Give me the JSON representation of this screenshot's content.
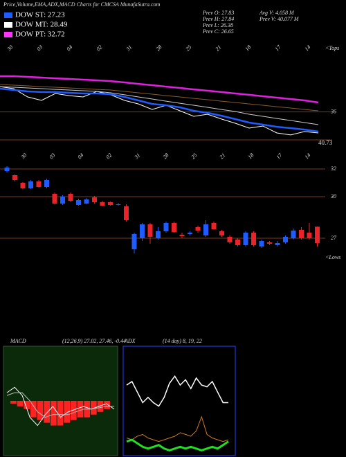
{
  "header": {
    "title": "Price,Volume,EMA,ADX,MACD Charts for CMCSA MunafaSutra.com",
    "legend": [
      {
        "label": "DOW ST: 27.23",
        "color": "#1e5cff"
      },
      {
        "label": "DOW MT: 28.49",
        "color": "#ffffff"
      },
      {
        "label": "DOW PT: 32.72",
        "color": "#ff33ff"
      }
    ],
    "prev_left": [
      "Prev O: 27.83",
      "Prev H: 27.84",
      "Prev L: 26.38",
      "Prev C: 26.65"
    ],
    "prev_right": [
      "Avg V: 4.058 M",
      "Prev V: 40.077 M"
    ]
  },
  "chart_data": [
    {
      "type": "line",
      "ylim": [
        32.5,
        43
      ],
      "yticks": [
        36
      ],
      "annotation": "40.73",
      "corner_label": "<Tops",
      "date_labels": [
        "30",
        "03",
        "04",
        "02",
        "31",
        "28",
        "25",
        "21",
        "18",
        "17",
        "14"
      ],
      "series": [
        {
          "name": "Price",
          "color": "#ffffff",
          "width": 1,
          "values": [
            38.65,
            38.43,
            37.57,
            37.21,
            37.93,
            37.71,
            37.57,
            38.15,
            37.79,
            37.21,
            36.84,
            36.26,
            36.7,
            36.12,
            35.54,
            35.76,
            35.26,
            34.82,
            34.31,
            34.53,
            33.8,
            33.59,
            33.95,
            33.8
          ]
        },
        {
          "name": "DOW ST",
          "color": "#1e5cff",
          "width": 2.5,
          "values": [
            38.44,
            38.29,
            38.15,
            38.08,
            38.08,
            38.0,
            37.93,
            37.93,
            37.86,
            37.57,
            37.21,
            36.84,
            36.7,
            36.48,
            36.12,
            35.9,
            35.61,
            35.25,
            34.89,
            34.67,
            34.45,
            34.31,
            34.16,
            33.95
          ]
        },
        {
          "name": "DOW MT",
          "color": "#cccccc",
          "width": 1,
          "values": [
            38.65,
            38.58,
            38.51,
            38.44,
            38.36,
            38.29,
            38.22,
            38.15,
            38.0,
            37.79,
            37.57,
            37.35,
            37.13,
            36.91,
            36.7,
            36.48,
            36.26,
            36.05,
            35.76,
            35.54,
            35.32,
            35.11,
            34.89,
            34.67
          ]
        },
        {
          "name": "EMA long",
          "color": "#8a5a2a",
          "width": 1,
          "values": [
            38.87,
            38.8,
            38.73,
            38.65,
            38.58,
            38.51,
            38.44,
            38.36,
            38.29,
            38.15,
            38.0,
            37.86,
            37.71,
            37.57,
            37.42,
            37.28,
            37.13,
            36.99,
            36.84,
            36.7,
            36.55,
            36.41,
            36.26,
            36.12
          ]
        },
        {
          "name": "DOW PT",
          "color": "#e020e0",
          "width": 2.5,
          "values": [
            39.74,
            39.74,
            39.67,
            39.6,
            39.52,
            39.45,
            39.38,
            39.31,
            39.23,
            39.09,
            38.94,
            38.8,
            38.65,
            38.51,
            38.36,
            38.22,
            38.08,
            37.93,
            37.79,
            37.64,
            37.5,
            37.35,
            37.21,
            36.99
          ]
        }
      ]
    },
    {
      "type": "candlestick",
      "ylim": [
        25.45,
        32.8
      ],
      "yticks": [
        27,
        30,
        32
      ],
      "corner_label": "<Lows",
      "up_color": "#1e5cff",
      "down_color": "#e8232a",
      "open": [
        31.85,
        31.55,
        31.0,
        30.6,
        31.1,
        30.7,
        30.2,
        29.5,
        30.2,
        29.4,
        29.5,
        29.95,
        29.6,
        29.6,
        29.4,
        29.3,
        26.2,
        27.0,
        28.0,
        27.0,
        27.5,
        28.1,
        27.25,
        27.3,
        27.8,
        27.2,
        28.1,
        27.5,
        27.1,
        26.9,
        26.5,
        27.4,
        26.4,
        26.7,
        26.5,
        26.7,
        27.0,
        27.6,
        27.4,
        27.83
      ],
      "high": [
        32.2,
        31.6,
        31.05,
        31.2,
        31.2,
        31.3,
        30.3,
        30.1,
        30.3,
        29.85,
        29.9,
        30.05,
        29.7,
        29.65,
        29.55,
        29.45,
        27.4,
        28.1,
        28.1,
        27.8,
        28.2,
        28.2,
        27.4,
        27.5,
        27.9,
        28.3,
        28.2,
        27.6,
        27.2,
        27.0,
        27.5,
        27.5,
        26.9,
        26.8,
        26.8,
        27.2,
        27.7,
        27.8,
        28.1,
        27.84
      ],
      "low": [
        31.75,
        31.1,
        30.55,
        30.55,
        30.65,
        30.6,
        29.45,
        29.4,
        29.6,
        29.35,
        29.45,
        29.5,
        29.3,
        29.35,
        29.35,
        28.2,
        25.9,
        26.8,
        26.6,
        26.9,
        27.4,
        27.4,
        27.0,
        27.2,
        27.4,
        27.1,
        27.6,
        27.1,
        26.6,
        26.4,
        26.4,
        26.4,
        26.3,
        26.5,
        26.4,
        26.6,
        26.9,
        26.9,
        26.9,
        26.38
      ],
      "close": [
        32.1,
        31.2,
        30.6,
        31.1,
        30.7,
        31.2,
        29.5,
        30.0,
        29.7,
        29.75,
        29.8,
        29.6,
        29.35,
        29.4,
        29.45,
        28.3,
        27.3,
        28.0,
        27.1,
        27.5,
        28.1,
        27.45,
        27.15,
        27.4,
        27.55,
        28.0,
        27.65,
        27.2,
        26.7,
        26.5,
        27.4,
        26.5,
        26.8,
        26.6,
        26.65,
        27.1,
        27.55,
        27.0,
        27.0,
        26.65
      ]
    },
    {
      "type": "macd",
      "title": "MACD",
      "params": "(12,26,9) 27.02, 27.46, -0.44",
      "ylim": [
        -2,
        2
      ],
      "background": "#0a2a0a",
      "hist_color": "#ff2222",
      "series": [
        {
          "name": "MACD",
          "color": "#ffffff",
          "values": [
            0.3,
            0.5,
            0.2,
            -0.6,
            -0.9,
            -0.5,
            -0.2,
            -0.6,
            -0.4,
            -0.3,
            -0.2,
            -0.3,
            -0.2,
            -0.1,
            -0.3
          ]
        },
        {
          "name": "Signal",
          "color": "#bbbbbb",
          "values": [
            0.2,
            0.3,
            0.3,
            0.0,
            -0.4,
            -0.6,
            -0.5,
            -0.5,
            -0.5,
            -0.4,
            -0.3,
            -0.3,
            -0.25,
            -0.2,
            -0.2
          ]
        }
      ],
      "histogram": [
        -0.1,
        -0.2,
        -0.3,
        -0.6,
        -0.7,
        -0.8,
        -0.9,
        -0.9,
        -0.8,
        -0.7,
        -0.6,
        -0.6,
        -0.5,
        -0.4,
        -0.3
      ]
    },
    {
      "type": "adx",
      "title": "ADX",
      "params": "(14 day) 8, 19, 22",
      "ylim": [
        0,
        62
      ],
      "border": "#2244ff",
      "series": [
        {
          "name": "ADX",
          "color": "#ffffff",
          "width": 1.5,
          "values": [
            40,
            42,
            36,
            30,
            33,
            30,
            28,
            33,
            41,
            45,
            40,
            43,
            38,
            44,
            40,
            39,
            42,
            36,
            30,
            30
          ]
        },
        {
          "name": "DI+",
          "color": "#d07a20",
          "width": 1,
          "values": [
            10,
            9,
            11,
            12,
            10,
            9,
            8,
            9,
            10,
            11,
            13,
            12,
            11,
            14,
            22,
            12,
            10,
            9,
            8,
            9
          ]
        },
        {
          "name": "DI-",
          "color": "#22dd22",
          "width": 3,
          "values": [
            8,
            9,
            7,
            5,
            4,
            5,
            6,
            4,
            3,
            4,
            5,
            4,
            5,
            4,
            3,
            4,
            5,
            4,
            6,
            8
          ]
        }
      ]
    }
  ]
}
